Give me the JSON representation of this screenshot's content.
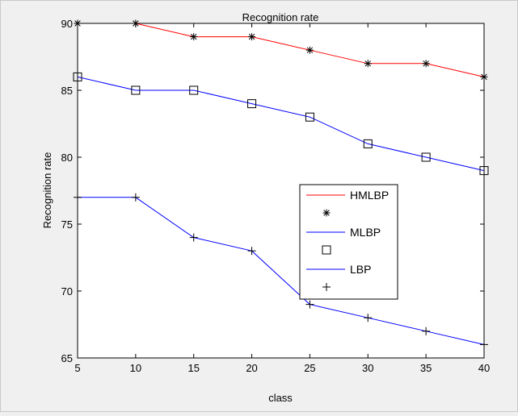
{
  "chart_data": {
    "type": "line",
    "title": "Recognition rate",
    "xlabel": "class",
    "ylabel": "Recognition rate",
    "xlim": [
      5,
      40
    ],
    "ylim": [
      65,
      90
    ],
    "x": [
      5,
      10,
      15,
      20,
      25,
      30,
      35,
      40
    ],
    "xticks": [
      "5",
      "10",
      "15",
      "20",
      "25",
      "30",
      "35",
      "40"
    ],
    "yticks": [
      "65",
      "70",
      "75",
      "80",
      "85",
      "90"
    ],
    "grid": false,
    "legend_position": "center-right",
    "series": [
      {
        "name": "HMLBP",
        "marker_label": "",
        "color": "#ff0000",
        "marker_color": "#000000",
        "marker": "asterisk",
        "values": [
          90,
          90,
          89,
          89,
          88,
          87,
          87,
          86
        ]
      },
      {
        "name": "MLBP",
        "marker_label": "",
        "color": "#0000ff",
        "marker_color": "#000000",
        "marker": "square",
        "values": [
          86,
          85,
          85,
          84,
          83,
          81,
          80,
          79
        ]
      },
      {
        "name": "LBP",
        "marker_label": "",
        "color": "#0000ff",
        "marker_color": "#000000",
        "marker": "plus",
        "values": [
          77,
          77,
          74,
          73,
          69,
          68,
          67,
          66
        ]
      }
    ]
  }
}
